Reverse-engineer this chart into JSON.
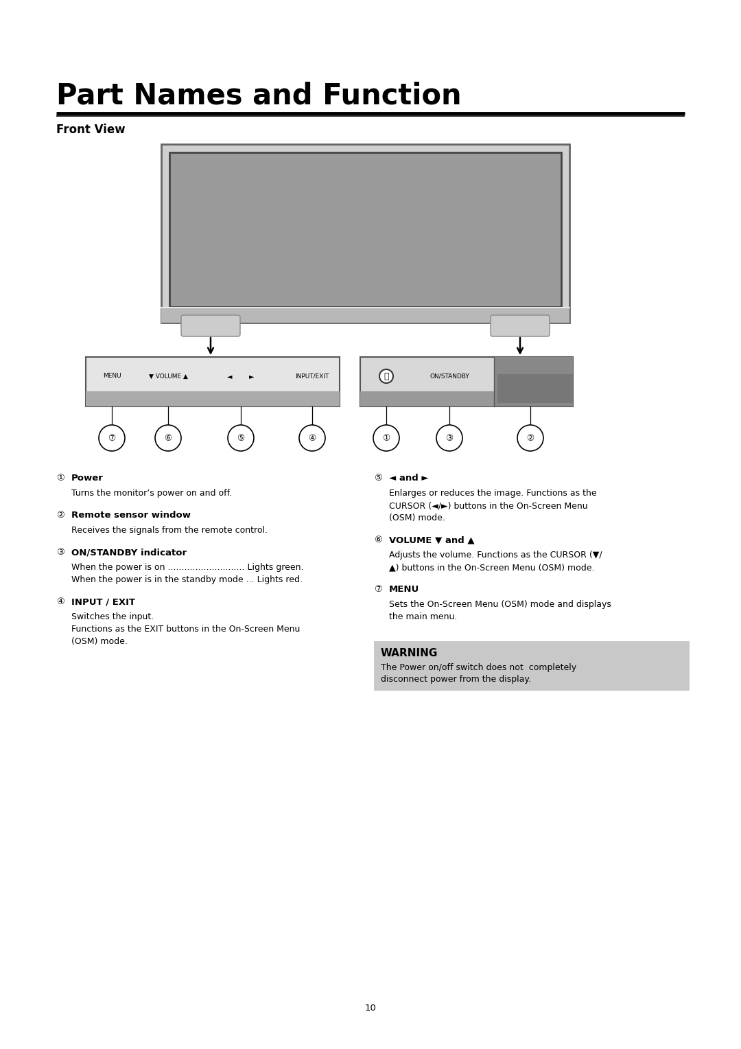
{
  "title": "Part Names and Function",
  "subtitle": "Front View",
  "page_number": "10",
  "bg_color": "#ffffff",
  "items_left": [
    {
      "num": "①",
      "bold": "Power",
      "text": "Turns the monitor’s power on and off."
    },
    {
      "num": "②",
      "bold": "Remote sensor window",
      "text": "Receives the signals from the remote control."
    },
    {
      "num": "③",
      "bold": "ON/STANDBY indicator",
      "text_lines": [
        "When the power is on ............................ Lights green.",
        "When the power is in the standby mode ... Lights red."
      ]
    },
    {
      "num": "④",
      "bold": "INPUT / EXIT",
      "text_lines": [
        "Switches the input.",
        "Functions as the EXIT buttons in the On-Screen Menu",
        "(OSM) mode."
      ]
    }
  ],
  "items_right": [
    {
      "num": "⑤",
      "bold": "◄ and ►",
      "text_lines": [
        "Enlarges or reduces the image. Functions as the",
        "CURSOR (◄/►) buttons in the On-Screen Menu",
        "(OSM) mode."
      ]
    },
    {
      "num": "⑥",
      "bold": "VOLUME ▼ and ▲",
      "text_lines": [
        "Adjusts the volume. Functions as the CURSOR (▼/",
        "▲) buttons in the On-Screen Menu (OSM) mode."
      ]
    },
    {
      "num": "⑦",
      "bold": "MENU",
      "text_lines": [
        "Sets the On-Screen Menu (OSM) mode and displays",
        "the main menu."
      ]
    }
  ],
  "warning_title": "WARNING",
  "warning_text_lines": [
    "The Power on/off switch does not  completely",
    "disconnect power from the display."
  ],
  "warning_bg": "#c8c8c8"
}
